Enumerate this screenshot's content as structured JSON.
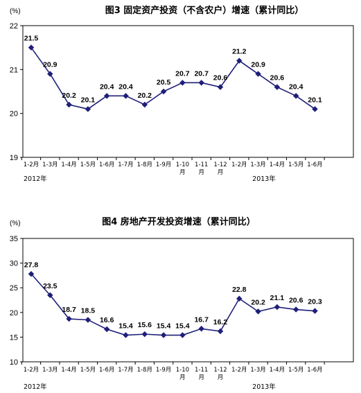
{
  "chart_data": [
    {
      "type": "line",
      "title": "图3 固定资产投资（不含农户）增速（累计同比）",
      "unit": "(%)",
      "categories": [
        "1-2月",
        "1-3月",
        "1-4月",
        "1-5月",
        "1-6月",
        "1-7月",
        "1-8月",
        "1-9月",
        "1-10月",
        "1-11月",
        "1-12月",
        "1-2月",
        "1-3月",
        "1-4月",
        "1-5月",
        "1-6月"
      ],
      "series": [
        {
          "values": [
            21.5,
            20.9,
            20.2,
            20.1,
            20.4,
            20.4,
            20.2,
            20.5,
            20.7,
            20.7,
            20.6,
            21.2,
            20.9,
            20.6,
            20.4,
            20.1
          ]
        }
      ],
      "ylim": [
        19,
        22
      ],
      "yticks": [
        19,
        20,
        21,
        22
      ],
      "year_labels": [
        "2012年",
        "2013年"
      ],
      "grid": false,
      "line_color": "#1F1F7A"
    },
    {
      "type": "line",
      "title": "图4 房地产开发投资增速（累计同比）",
      "unit": "(%)",
      "categories": [
        "1-2月",
        "1-3月",
        "1-4月",
        "1-5月",
        "1-6月",
        "1-7月",
        "1-8月",
        "1-9月",
        "1-10月",
        "1-11月",
        "1-12月",
        "1-2月",
        "1-3月",
        "1-4月",
        "1-5月",
        "1-6月"
      ],
      "series": [
        {
          "values": [
            27.8,
            23.5,
            18.7,
            18.5,
            16.6,
            15.4,
            15.6,
            15.4,
            15.4,
            16.7,
            16.2,
            22.8,
            20.2,
            21.1,
            20.6,
            20.3
          ]
        }
      ],
      "ylim": [
        10,
        35
      ],
      "yticks": [
        10,
        15,
        20,
        25,
        30,
        35
      ],
      "year_labels": [
        "2012年",
        "2013年"
      ],
      "grid": false,
      "line_color": "#1F1F7A"
    }
  ]
}
